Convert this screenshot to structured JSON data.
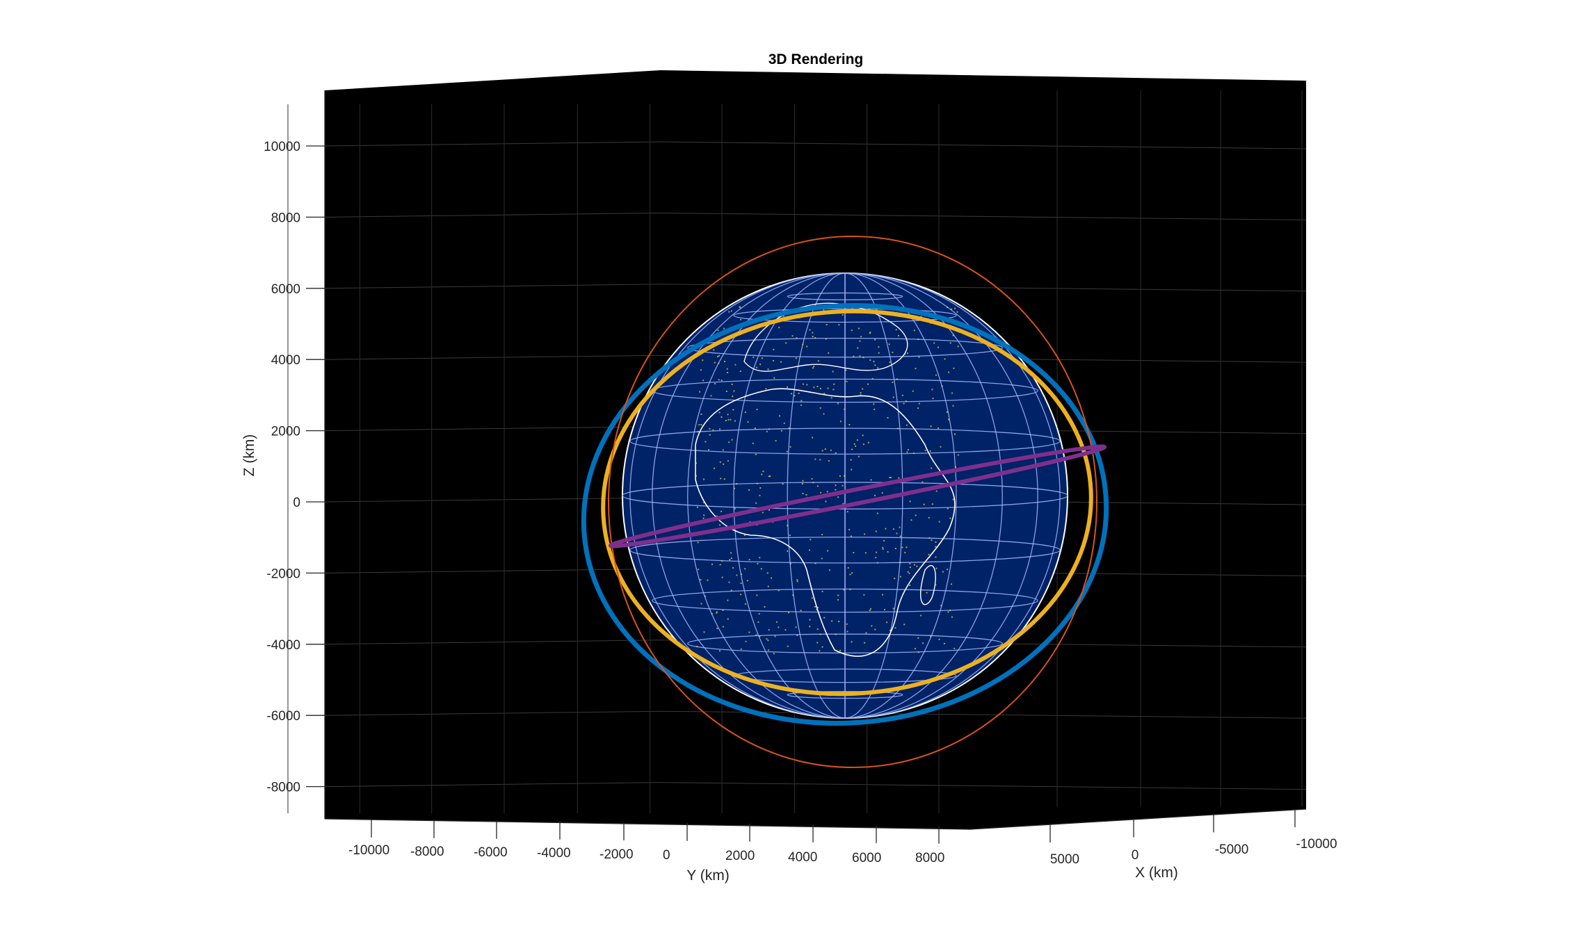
{
  "chart_data": {
    "type": "3d-line",
    "title": "3D Rendering",
    "xlabel": "X (km)",
    "ylabel": "Y (km)",
    "zlabel": "Z (km)",
    "x_ticks": [
      "5000",
      "0",
      "-5000",
      "-10000"
    ],
    "y_ticks": [
      "-10000",
      "-8000",
      "-6000",
      "-4000",
      "-2000",
      "0",
      "2000",
      "4000",
      "6000",
      "8000"
    ],
    "z_ticks": [
      "10000",
      "8000",
      "6000",
      "4000",
      "2000",
      "0",
      "-2000",
      "-4000",
      "-6000",
      "-8000"
    ],
    "zlim": [
      -9000,
      11500
    ],
    "grid": true,
    "background": "#000000",
    "globe": {
      "radius_km": 6371,
      "ocean_color": "#002266",
      "graticule_color": "#a0b8ff",
      "coastline_color": "#ffffff",
      "land_color": "#e0e060"
    },
    "series": [
      {
        "color": "#0072bd",
        "semi_axis_km": 7500,
        "shape": "near-polar circular orbit"
      },
      {
        "color": "#edb120",
        "semi_axis_km": 7000,
        "shape": "inclined circular orbit"
      },
      {
        "color": "#d95319",
        "semi_axis_km": 7500,
        "shape": "polar orbit"
      },
      {
        "color": "#7e2f8e",
        "semi_axis_km": 7500,
        "shape": "near-equatorial orbit"
      }
    ]
  }
}
